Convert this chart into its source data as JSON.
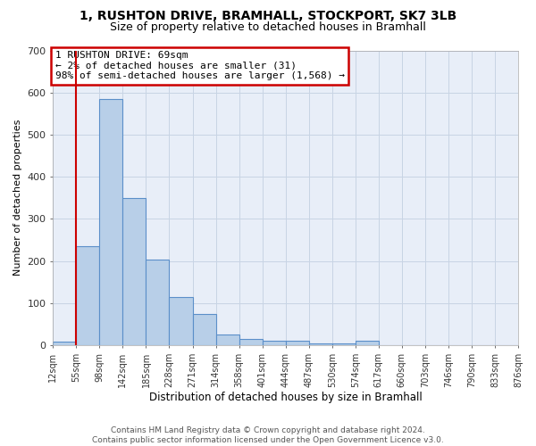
{
  "title1": "1, RUSHTON DRIVE, BRAMHALL, STOCKPORT, SK7 3LB",
  "title2": "Size of property relative to detached houses in Bramhall",
  "xlabel": "Distribution of detached houses by size in Bramhall",
  "ylabel": "Number of detached properties",
  "bar_values": [
    8,
    235,
    585,
    350,
    204,
    115,
    73,
    25,
    15,
    10,
    10,
    5,
    5,
    10,
    0,
    0,
    0,
    0,
    0,
    0
  ],
  "bin_edge_labels": [
    "12sqm",
    "55sqm",
    "98sqm",
    "142sqm",
    "185sqm",
    "228sqm",
    "271sqm",
    "314sqm",
    "358sqm",
    "401sqm",
    "444sqm",
    "487sqm",
    "530sqm",
    "574sqm",
    "617sqm",
    "660sqm",
    "703sqm",
    "746sqm",
    "790sqm",
    "833sqm",
    "876sqm"
  ],
  "bar_color": "#b8cfe8",
  "bar_edge_color": "#5b8fc9",
  "grid_color": "#c8d4e4",
  "background_color": "#e8eef8",
  "vline_color": "#cc0000",
  "vline_x": 0.5,
  "annotation_text": "1 RUSHTON DRIVE: 69sqm\n← 2% of detached houses are smaller (31)\n98% of semi-detached houses are larger (1,568) →",
  "annotation_box_edgecolor": "#cc0000",
  "ylim": [
    0,
    700
  ],
  "yticks": [
    0,
    100,
    200,
    300,
    400,
    500,
    600,
    700
  ],
  "footer_line1": "Contains HM Land Registry data © Crown copyright and database right 2024.",
  "footer_line2": "Contains public sector information licensed under the Open Government Licence v3.0.",
  "title1_fontsize": 10,
  "title2_fontsize": 9,
  "xlabel_fontsize": 8.5,
  "ylabel_fontsize": 8,
  "tick_fontsize": 7,
  "annotation_fontsize": 8,
  "footer_fontsize": 6.5
}
